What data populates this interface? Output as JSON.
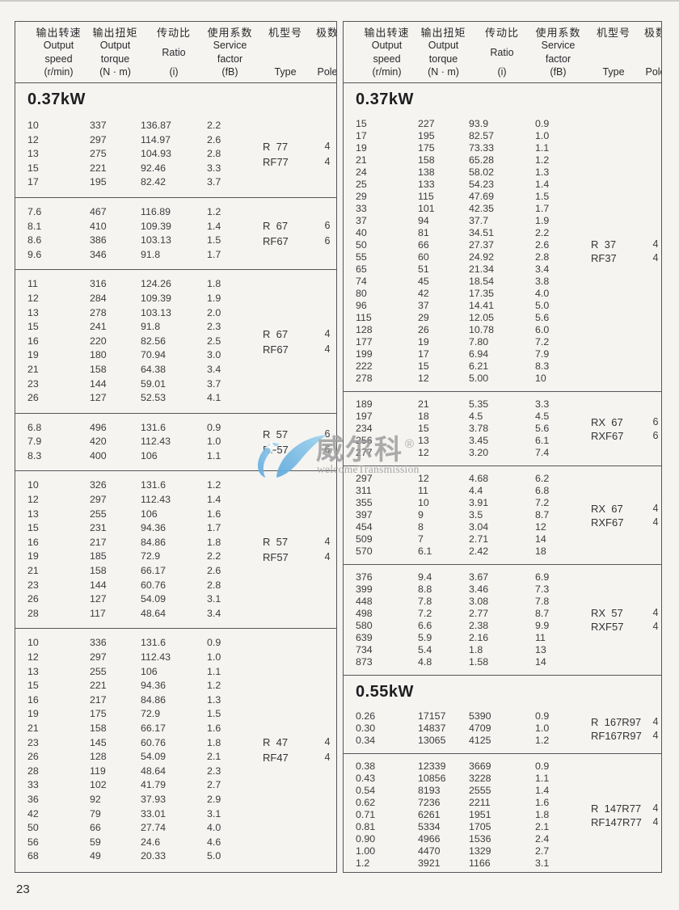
{
  "page": {
    "number": "23"
  },
  "colors": {
    "background": "#f5f4f1",
    "border": "#55565a",
    "text": "#3c3c3e",
    "logo_blue": "#7fc2e9",
    "watermark_gray": "#9b9b9b"
  },
  "headers": {
    "cols": [
      {
        "name": "output-speed",
        "lines": [
          "输出转速",
          "Output",
          "speed",
          "(r/min)"
        ]
      },
      {
        "name": "output-torque",
        "lines": [
          "输出扭矩",
          "Output",
          "torque",
          "(N · m)"
        ]
      },
      {
        "name": "ratio",
        "lines": [
          "传动比",
          "Ratio",
          "(i)"
        ]
      },
      {
        "name": "service-factor",
        "lines": [
          "使用系数",
          "Service",
          "factor",
          "(fB)"
        ]
      },
      {
        "name": "type",
        "lines": [
          "机型号",
          "Type"
        ]
      },
      {
        "name": "pole",
        "lines": [
          "极数",
          "Pole"
        ]
      }
    ]
  },
  "watermark": {
    "brand_cn": "威尔科",
    "registered": "®",
    "brand_en": "welcomeTransmission"
  },
  "left_column": {
    "sections": [
      {
        "power": "0.37kW",
        "blocks": [
          {
            "rows": [
              [
                "10",
                "337",
                "136.87",
                "2.2"
              ],
              [
                "12",
                "297",
                "114.97",
                "2.6"
              ],
              [
                "13",
                "275",
                "104.93",
                "2.8"
              ],
              [
                "15",
                "221",
                "92.46",
                "3.3"
              ],
              [
                "17",
                "195",
                "82.42",
                "3.7"
              ]
            ],
            "types": [
              "R  77",
              "RF77"
            ],
            "poles": [
              "4",
              "4"
            ]
          },
          {
            "rows": [
              [
                "7.6",
                "467",
                "116.89",
                "1.2"
              ],
              [
                "8.1",
                "410",
                "109.39",
                "1.4"
              ],
              [
                "8.6",
                "386",
                "103.13",
                "1.5"
              ],
              [
                "9.6",
                "346",
                "91.8",
                "1.7"
              ]
            ],
            "types": [
              "R  67",
              "RF67"
            ],
            "poles": [
              "6",
              "6"
            ]
          },
          {
            "rows": [
              [
                "11",
                "316",
                "124.26",
                "1.8"
              ],
              [
                "12",
                "284",
                "109.39",
                "1.9"
              ],
              [
                "13",
                "278",
                "103.13",
                "2.0"
              ],
              [
                "15",
                "241",
                "91.8",
                "2.3"
              ],
              [
                "16",
                "220",
                "82.56",
                "2.5"
              ],
              [
                "19",
                "180",
                "70.94",
                "3.0"
              ],
              [
                "21",
                "158",
                "64.38",
                "3.4"
              ],
              [
                "23",
                "144",
                "59.01",
                "3.7"
              ],
              [
                "26",
                "127",
                "52.53",
                "4.1"
              ]
            ],
            "types": [
              "R  67",
              "RF67"
            ],
            "poles": [
              "4",
              "4"
            ]
          },
          {
            "rows": [
              [
                "6.8",
                "496",
                "131.6",
                "0.9"
              ],
              [
                "7.9",
                "420",
                "112.43",
                "1.0"
              ],
              [
                "8.3",
                "400",
                "106",
                "1.1"
              ]
            ],
            "types": [
              "R  57",
              "RF57"
            ],
            "poles": [
              "6",
              "6"
            ]
          },
          {
            "rows": [
              [
                "10",
                "326",
                "131.6",
                "1.2"
              ],
              [
                "12",
                "297",
                "112.43",
                "1.4"
              ],
              [
                "13",
                "255",
                "106",
                "1.6"
              ],
              [
                "15",
                "231",
                "94.36",
                "1.7"
              ],
              [
                "16",
                "217",
                "84.86",
                "1.8"
              ],
              [
                "19",
                "185",
                "72.9",
                "2.2"
              ],
              [
                "21",
                "158",
                "66.17",
                "2.6"
              ],
              [
                "23",
                "144",
                "60.76",
                "2.8"
              ],
              [
                "26",
                "127",
                "54.09",
                "3.1"
              ],
              [
                "28",
                "117",
                "48.64",
                "3.4"
              ]
            ],
            "types": [
              "R  57",
              "RF57"
            ],
            "poles": [
              "4",
              "4"
            ]
          },
          {
            "rows": [
              [
                "10",
                "336",
                "131.6",
                "0.9"
              ],
              [
                "12",
                "297",
                "112.43",
                "1.0"
              ],
              [
                "13",
                "255",
                "106",
                "1.1"
              ],
              [
                "15",
                "221",
                "94.36",
                "1.2"
              ],
              [
                "16",
                "217",
                "84.86",
                "1.3"
              ],
              [
                "19",
                "175",
                "72.9",
                "1.5"
              ],
              [
                "21",
                "158",
                "66.17",
                "1.6"
              ],
              [
                "23",
                "145",
                "60.76",
                "1.8"
              ],
              [
                "26",
                "128",
                "54.09",
                "2.1"
              ],
              [
                "28",
                "119",
                "48.64",
                "2.3"
              ],
              [
                "33",
                "102",
                "41.79",
                "2.7"
              ],
              [
                "36",
                "92",
                "37.93",
                "2.9"
              ],
              [
                "42",
                "79",
                "33.01",
                "3.1"
              ],
              [
                "50",
                "66",
                "27.74",
                "4.0"
              ],
              [
                "56",
                "59",
                "24.6",
                "4.6"
              ],
              [
                "68",
                "49",
                "20.33",
                "5.0"
              ]
            ],
            "types": [
              "R  47",
              "RF47"
            ],
            "poles": [
              "4",
              "4"
            ]
          }
        ]
      }
    ]
  },
  "right_column": {
    "sections": [
      {
        "power": "0.37kW",
        "blocks": [
          {
            "rows": [
              [
                "15",
                "227",
                "93.9",
                "0.9"
              ],
              [
                "17",
                "195",
                "82.57",
                "1.0"
              ],
              [
                "19",
                "175",
                "73.33",
                "1.1"
              ],
              [
                "21",
                "158",
                "65.28",
                "1.2"
              ],
              [
                "24",
                "138",
                "58.02",
                "1.3"
              ],
              [
                "25",
                "133",
                "54.23",
                "1.4"
              ],
              [
                "29",
                "115",
                "47.69",
                "1.5"
              ],
              [
                "33",
                "101",
                "42.35",
                "1.7"
              ],
              [
                "37",
                "94",
                "37.7",
                "1.9"
              ],
              [
                "40",
                "81",
                "34.51",
                "2.2"
              ],
              [
                "50",
                "66",
                "27.37",
                "2.6"
              ],
              [
                "55",
                "60",
                "24.92",
                "2.8"
              ],
              [
                "65",
                "51",
                "21.34",
                "3.4"
              ],
              [
                "74",
                "45",
                "18.54",
                "3.8"
              ],
              [
                "80",
                "42",
                "17.35",
                "4.0"
              ],
              [
                "96",
                "37",
                "14.41",
                "5.0"
              ],
              [
                "115",
                "29",
                "12.05",
                "5.6"
              ],
              [
                "128",
                "26",
                "10.78",
                "6.0"
              ],
              [
                "177",
                "19",
                "7.80",
                "7.2"
              ],
              [
                "199",
                "17",
                "6.94",
                "7.9"
              ],
              [
                "222",
                "15",
                "6.21",
                "8.3"
              ],
              [
                "278",
                "12",
                "5.00",
                "10"
              ]
            ],
            "types": [
              "R  37",
              "RF37"
            ],
            "poles": [
              "4",
              "4"
            ]
          },
          {
            "rows": [
              [
                "189",
                "21",
                "5.35",
                "3.3"
              ],
              [
                "197",
                "18",
                "4.5",
                "4.5"
              ],
              [
                "234",
                "15",
                "3.78",
                "5.6"
              ],
              [
                "256",
                "13",
                "3.45",
                "6.1"
              ],
              [
                "277",
                "12",
                "3.20",
                "7.4"
              ]
            ],
            "types": [
              "RX  67",
              "RXF67"
            ],
            "poles": [
              "6",
              "6"
            ]
          },
          {
            "rows": [
              [
                "297",
                "12",
                "4.68",
                "6.2"
              ],
              [
                "311",
                "11",
                "4.4",
                "6.8"
              ],
              [
                "355",
                "10",
                "3.91",
                "7.2"
              ],
              [
                "397",
                "9",
                "3.5",
                "8.7"
              ],
              [
                "454",
                "8",
                "3.04",
                "12"
              ],
              [
                "509",
                "7",
                "2.71",
                "14"
              ],
              [
                "570",
                "6.1",
                "2.42",
                "18"
              ]
            ],
            "types": [
              "RX  67",
              "RXF67"
            ],
            "poles": [
              "4",
              "4"
            ]
          },
          {
            "rows": [
              [
                "376",
                "9.4",
                "3.67",
                "6.9"
              ],
              [
                "399",
                "8.8",
                "3.46",
                "7.3"
              ],
              [
                "448",
                "7.8",
                "3.08",
                "7.8"
              ],
              [
                "498",
                "7.2",
                "2.77",
                "8.7"
              ],
              [
                "580",
                "6.6",
                "2.38",
                "9.9"
              ],
              [
                "639",
                "5.9",
                "2.16",
                "11"
              ],
              [
                "734",
                "5.4",
                "1.8",
                "13"
              ],
              [
                "873",
                "4.8",
                "1.58",
                "14"
              ]
            ],
            "types": [
              "RX  57",
              "RXF57"
            ],
            "poles": [
              "4",
              "4"
            ]
          }
        ]
      },
      {
        "power": "0.55kW",
        "blocks": [
          {
            "rows": [
              [
                "0.26",
                "17157",
                "5390",
                "0.9"
              ],
              [
                "0.30",
                "14837",
                "4709",
                "1.0"
              ],
              [
                "0.34",
                "13065",
                "4125",
                "1.2"
              ]
            ],
            "types": [
              "R  167R97",
              "RF167R97"
            ],
            "poles": [
              "4",
              "4"
            ]
          },
          {
            "rows": [
              [
                "0.38",
                "12339",
                "3669",
                "0.9"
              ],
              [
                "0.43",
                "10856",
                "3228",
                "1.1"
              ],
              [
                "0.54",
                "8193",
                "2555",
                "1.4"
              ],
              [
                "0.62",
                "7236",
                "2211",
                "1.6"
              ],
              [
                "0.71",
                "6261",
                "1951",
                "1.8"
              ],
              [
                "0.81",
                "5334",
                "1705",
                "2.1"
              ],
              [
                "0.90",
                "4966",
                "1536",
                "2.4"
              ],
              [
                "1.00",
                "4470",
                "1329",
                "2.7"
              ],
              [
                "1.2",
                "3921",
                "1166",
                "3.1"
              ]
            ],
            "types": [
              "R  147R77",
              "RF147R77"
            ],
            "poles": [
              "4",
              "4"
            ]
          }
        ]
      }
    ]
  }
}
